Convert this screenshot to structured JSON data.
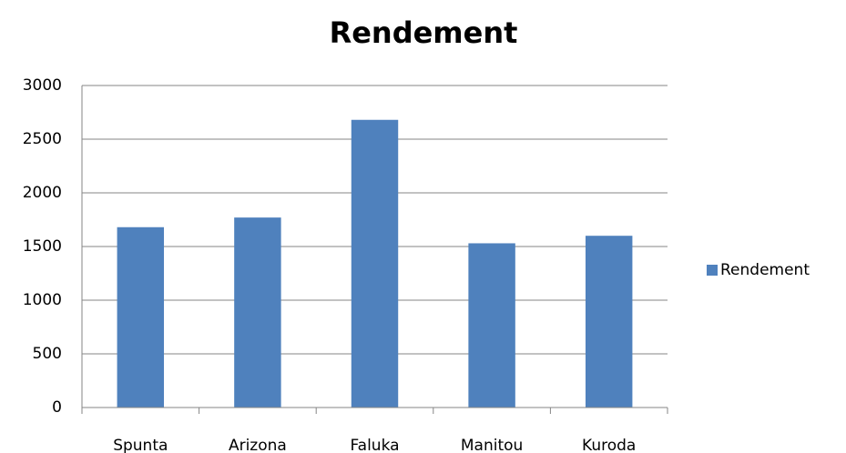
{
  "chart_data": {
    "type": "bar",
    "title": "Rendement",
    "categories": [
      "Spunta",
      "Arizona",
      "Faluka",
      "Manitou",
      "Kuroda"
    ],
    "series": [
      {
        "name": "Rendement",
        "color": "#4f81bd",
        "values": [
          1680,
          1770,
          2680,
          1530,
          1600
        ]
      }
    ],
    "ylim": [
      0,
      3000
    ],
    "yticks": [
      0,
      500,
      1000,
      1500,
      2000,
      2500,
      3000
    ],
    "grid": true,
    "legend": "right"
  }
}
